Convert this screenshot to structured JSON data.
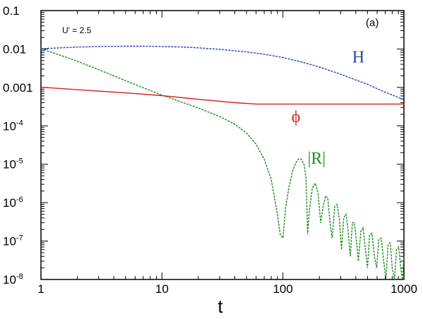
{
  "chart_data": {
    "type": "line",
    "panel_label": "(a)",
    "annotation": "U' = 2.5",
    "xlabel": "t",
    "ylabel": "",
    "x_scale": "log",
    "y_scale": "log",
    "xlim": [
      1,
      1000
    ],
    "ylim": [
      1e-08,
      0.1
    ],
    "grid": false,
    "x_ticks": [
      {
        "value": 1,
        "label": "1"
      },
      {
        "value": 10,
        "label": "10"
      },
      {
        "value": 100,
        "label": "100"
      },
      {
        "value": 1000,
        "label": "1000"
      }
    ],
    "y_ticks": [
      {
        "value": 0.1,
        "label": "0.1",
        "exp": ""
      },
      {
        "value": 0.01,
        "label": "0.01",
        "exp": ""
      },
      {
        "value": 0.001,
        "label": "0.001",
        "exp": ""
      },
      {
        "value": 0.0001,
        "label": "10",
        "exp": "-4"
      },
      {
        "value": 1e-05,
        "label": "10",
        "exp": "-5"
      },
      {
        "value": 1e-06,
        "label": "10",
        "exp": "-6"
      },
      {
        "value": 1e-07,
        "label": "10",
        "exp": "-7"
      },
      {
        "value": 1e-08,
        "label": "10",
        "exp": "-8"
      }
    ],
    "series": [
      {
        "name": "H",
        "color": "#2b3fb5",
        "label_at": {
          "x": 420,
          "y": 0.0045
        },
        "x": [
          1,
          2,
          3,
          5,
          7,
          10,
          15,
          20,
          30,
          50,
          70,
          100,
          150,
          200,
          300,
          500,
          700,
          1000
        ],
        "y": [
          0.0102,
          0.0112,
          0.0116,
          0.0118,
          0.0118,
          0.0116,
          0.0112,
          0.0107,
          0.0098,
          0.0084,
          0.0073,
          0.006,
          0.0044,
          0.0034,
          0.0022,
          0.0012,
          0.00075,
          0.00048
        ]
      },
      {
        "name": "ϕ",
        "color": "#d42020",
        "label_at": {
          "x": 128,
          "y": 0.000125
        },
        "x": [
          1,
          2,
          5,
          10,
          20,
          40,
          60,
          100,
          200,
          500,
          1000
        ],
        "y": [
          0.00101,
          0.00087,
          0.00072,
          0.00061,
          0.00049,
          0.0004,
          0.00037,
          0.00037,
          0.00037,
          0.00037,
          0.00037
        ]
      },
      {
        "name": "|R|",
        "color": "#1e8a1e",
        "label_at": {
          "x": 190,
          "y": 1.02e-05
        },
        "x": [
          1,
          1.5,
          2,
          3,
          5,
          7,
          10,
          15,
          20,
          30,
          40,
          50,
          60,
          70,
          80,
          90,
          95,
          100,
          105,
          112,
          120,
          128,
          135,
          142,
          150,
          155,
          160,
          165,
          175,
          185,
          195,
          205,
          215,
          225,
          235,
          245,
          255,
          268,
          280,
          292,
          305,
          318,
          332,
          345,
          360,
          375,
          390,
          405,
          420,
          440,
          460,
          480,
          500,
          520,
          545,
          570,
          595,
          620,
          650,
          680,
          710,
          740,
          770,
          800,
          835,
          870,
          905,
          940,
          970,
          1000
        ],
        "y": [
          0.0102,
          0.0066,
          0.0048,
          0.0029,
          0.0015,
          0.00098,
          0.00063,
          0.0004,
          0.00029,
          0.000175,
          0.00011,
          6.5e-05,
          3.3e-05,
          1.35e-05,
          4e-06,
          5e-07,
          1.5e-07,
          1.2e-07,
          7e-07,
          2.5e-06,
          6.5e-06,
          1.1e-05,
          1.38e-05,
          1.35e-05,
          9.5e-06,
          4.5e-06,
          1.5e-07,
          6e-07,
          2.4e-06,
          3.2e-06,
          1.8e-06,
          3e-07,
          8e-07,
          1.5e-06,
          1.3e-06,
          3e-07,
          1.2e-07,
          8e-07,
          9e-07,
          4e-07,
          6e-08,
          4e-07,
          5e-07,
          2e-07,
          4e-08,
          3e-07,
          3e-07,
          1e-07,
          3e-08,
          1.8e-07,
          2.2e-07,
          6e-08,
          2e-08,
          1.4e-07,
          1.6e-07,
          4e-08,
          2e-08,
          1.1e-07,
          1.2e-07,
          3e-08,
          1e-08,
          8e-08,
          9e-08,
          2e-08,
          1e-08,
          6e-08,
          7e-08,
          2e-08,
          1e-08,
          4e-08
        ]
      }
    ]
  }
}
